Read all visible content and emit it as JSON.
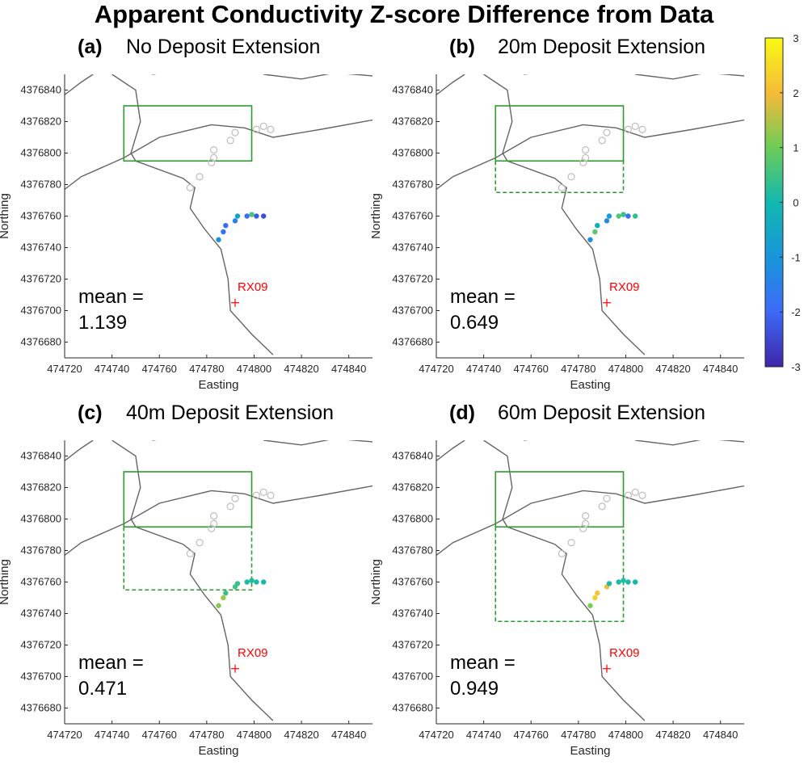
{
  "figure": {
    "title": "Apparent Conductivity Z-score Difference from Data"
  },
  "colorbar": {
    "min": -3,
    "max": 3,
    "ticks": [
      "3",
      "2",
      "1",
      "0",
      "-1",
      "-2",
      "-3"
    ],
    "colormap": "parula"
  },
  "colors": {
    "box": "#2e9b2e",
    "outline": "#646464",
    "ring": "#bdbdbd",
    "rx": "#ff0000"
  },
  "chart_data": [
    {
      "type": "scatter",
      "panel": "(a)",
      "title": "No Deposit Extension",
      "xlabel": "Easting",
      "ylabel": "Northing",
      "xlim": [
        474720,
        474850
      ],
      "ylim": [
        4376670,
        4376850
      ],
      "xticks": [
        "474720",
        "474740",
        "474760",
        "474780",
        "474800",
        "474820",
        "474840"
      ],
      "yticks": [
        "4376680",
        "4376700",
        "4376720",
        "4376740",
        "4376760",
        "4376780",
        "4376800",
        "4376820",
        "4376840"
      ],
      "receiver": {
        "label": "RX09",
        "x": 474792,
        "y": 4376705
      },
      "mean_label": "mean =",
      "mean_value": "1.139",
      "deposit_box": {
        "x": [
          474745,
          474799
        ],
        "y": [
          4376795,
          4376830
        ]
      },
      "extension_box": null,
      "points": [
        {
          "x": 474785,
          "y": 4376745,
          "z": -1.1
        },
        {
          "x": 474787,
          "y": 4376750,
          "z": -1.8
        },
        {
          "x": 474788,
          "y": 4376754,
          "z": -2.0
        },
        {
          "x": 474792,
          "y": 4376757,
          "z": -1.4
        },
        {
          "x": 474793,
          "y": 4376760,
          "z": -0.7
        },
        {
          "x": 474797,
          "y": 4376760,
          "z": -2.0
        },
        {
          "x": 474799,
          "y": 4376761,
          "z": 0.6
        },
        {
          "x": 474801,
          "y": 4376760,
          "z": -2.2
        },
        {
          "x": 474804,
          "y": 4376760,
          "z": -2.4
        }
      ]
    },
    {
      "type": "scatter",
      "panel": "(b)",
      "title": "20m Deposit Extension",
      "xlabel": "Easting",
      "ylabel": "Northing",
      "xlim": [
        474720,
        474850
      ],
      "ylim": [
        4376670,
        4376850
      ],
      "xticks": [
        "474720",
        "474740",
        "474760",
        "474780",
        "474800",
        "474820",
        "474840"
      ],
      "yticks": [
        "4376680",
        "4376700",
        "4376720",
        "4376740",
        "4376760",
        "4376780",
        "4376800",
        "4376820",
        "4376840"
      ],
      "receiver": {
        "label": "RX09",
        "x": 474792,
        "y": 4376705
      },
      "mean_label": "mean =",
      "mean_value": "0.649",
      "deposit_box": {
        "x": [
          474745,
          474799
        ],
        "y": [
          4376795,
          4376830
        ]
      },
      "extension_box": {
        "x": [
          474745,
          474799
        ],
        "y": [
          4376775,
          4376795
        ]
      },
      "points": [
        {
          "x": 474785,
          "y": 4376745,
          "z": -1.2
        },
        {
          "x": 474787,
          "y": 4376750,
          "z": 0.8
        },
        {
          "x": 474788,
          "y": 4376754,
          "z": -0.2
        },
        {
          "x": 474792,
          "y": 4376757,
          "z": -1.3
        },
        {
          "x": 474793,
          "y": 4376760,
          "z": -0.8
        },
        {
          "x": 474797,
          "y": 4376760,
          "z": 0.7
        },
        {
          "x": 474799,
          "y": 4376761,
          "z": 0.4
        },
        {
          "x": 474801,
          "y": 4376760,
          "z": -1.9
        },
        {
          "x": 474804,
          "y": 4376760,
          "z": 0.3
        }
      ]
    },
    {
      "type": "scatter",
      "panel": "(c)",
      "title": "40m Deposit Extension",
      "xlabel": "Easting",
      "ylabel": "Northing",
      "xlim": [
        474720,
        474850
      ],
      "ylim": [
        4376670,
        4376850
      ],
      "xticks": [
        "474720",
        "474740",
        "474760",
        "474780",
        "474800",
        "474820",
        "474840"
      ],
      "yticks": [
        "4376680",
        "4376700",
        "4376720",
        "4376740",
        "4376760",
        "4376780",
        "4376800",
        "4376820",
        "4376840"
      ],
      "receiver": {
        "label": "RX09",
        "x": 474792,
        "y": 4376705
      },
      "mean_label": "mean =",
      "mean_value": "0.471",
      "deposit_box": {
        "x": [
          474745,
          474799
        ],
        "y": [
          4376795,
          4376830
        ]
      },
      "extension_box": {
        "x": [
          474745,
          474799
        ],
        "y": [
          4376755,
          4376795
        ]
      },
      "points": [
        {
          "x": 474785,
          "y": 4376745,
          "z": 1.2
        },
        {
          "x": 474787,
          "y": 4376750,
          "z": 1.4
        },
        {
          "x": 474788,
          "y": 4376753,
          "z": 0.4
        },
        {
          "x": 474792,
          "y": 4376757,
          "z": 0.5
        },
        {
          "x": 474793,
          "y": 4376759,
          "z": 0.4
        },
        {
          "x": 474797,
          "y": 4376760,
          "z": 0.1
        },
        {
          "x": 474799,
          "y": 4376761,
          "z": 0.2
        },
        {
          "x": 474801,
          "y": 4376760,
          "z": 0.1
        },
        {
          "x": 474804,
          "y": 4376760,
          "z": 0.0
        }
      ]
    },
    {
      "type": "scatter",
      "panel": "(d)",
      "title": "60m Deposit Extension",
      "xlabel": "Easting",
      "ylabel": "Northing",
      "xlim": [
        474720,
        474850
      ],
      "ylim": [
        4376670,
        4376850
      ],
      "xticks": [
        "474720",
        "474740",
        "474760",
        "474780",
        "474800",
        "474820",
        "474840"
      ],
      "yticks": [
        "4376680",
        "4376700",
        "4376720",
        "4376740",
        "4376760",
        "4376780",
        "4376800",
        "4376820",
        "4376840"
      ],
      "receiver": {
        "label": "RX09",
        "x": 474792,
        "y": 4376705
      },
      "mean_label": "mean =",
      "mean_value": "0.949",
      "deposit_box": {
        "x": [
          474745,
          474799
        ],
        "y": [
          4376795,
          4376830
        ]
      },
      "extension_box": {
        "x": [
          474745,
          474799
        ],
        "y": [
          4376735,
          4376795
        ]
      },
      "points": [
        {
          "x": 474785,
          "y": 4376745,
          "z": 1.1
        },
        {
          "x": 474787,
          "y": 4376750,
          "z": 2.3
        },
        {
          "x": 474788,
          "y": 4376753,
          "z": 2.1
        },
        {
          "x": 474792,
          "y": 4376757,
          "z": 2.0
        },
        {
          "x": 474793,
          "y": 4376759,
          "z": 0.1
        },
        {
          "x": 474797,
          "y": 4376760,
          "z": 0.1
        },
        {
          "x": 474799,
          "y": 4376761,
          "z": 0.2
        },
        {
          "x": 474801,
          "y": 4376760,
          "z": 0.1
        },
        {
          "x": 474804,
          "y": 4376760,
          "z": 0.0
        }
      ]
    }
  ]
}
